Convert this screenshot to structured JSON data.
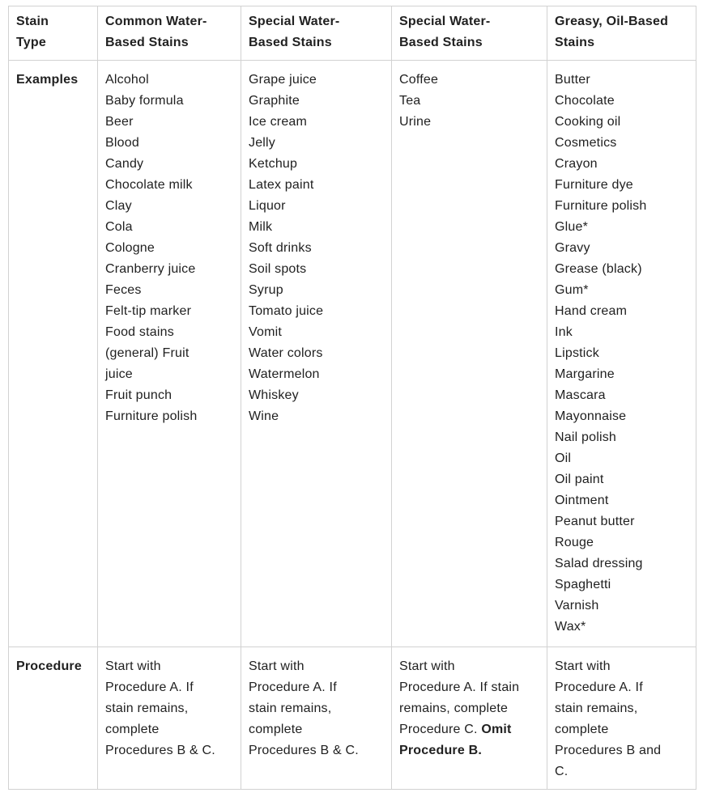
{
  "colors": {
    "background": "#ffffff",
    "text": "#212121",
    "border": "#d2d2d2"
  },
  "table": {
    "headers": [
      {
        "lines": [
          "Stain",
          "Type"
        ]
      },
      {
        "lines": [
          "Common Water-",
          "Based Stains"
        ]
      },
      {
        "lines": [
          "Special Water-",
          "Based Stains"
        ]
      },
      {
        "lines": [
          "Special Water-",
          "Based Stains"
        ]
      },
      {
        "lines": [
          "Greasy, Oil-Based",
          "Stains"
        ]
      }
    ],
    "examples_row": {
      "label": "Examples",
      "cells": [
        {
          "lines": [
            "Alcohol",
            "Baby formula",
            "Beer",
            "Blood",
            "Candy",
            "Chocolate milk",
            "Clay",
            "Cola",
            "Cologne",
            "Cranberry juice",
            "Feces",
            "Felt-tip marker",
            "Food stains",
            "(general) Fruit",
            "juice",
            "Fruit punch",
            "Furniture polish"
          ]
        },
        {
          "lines": [
            "Grape juice",
            "Graphite",
            "Ice cream",
            "Jelly",
            "Ketchup",
            "Latex paint",
            "Liquor",
            "Milk",
            "Soft drinks",
            "Soil spots",
            "Syrup",
            "Tomato juice",
            "Vomit",
            "Water colors",
            "Watermelon",
            "Whiskey",
            "Wine"
          ]
        },
        {
          "lines": [
            "Coffee",
            "Tea",
            "Urine"
          ]
        },
        {
          "lines": [
            "Butter",
            "Chocolate",
            "Cooking oil",
            "Cosmetics",
            "Crayon",
            "Furniture dye",
            "Furniture polish",
            "Glue*",
            "Gravy",
            "Grease (black)",
            "Gum*",
            "Hand cream",
            "Ink",
            "Lipstick",
            "Margarine",
            "Mascara",
            "Mayonnaise",
            "Nail polish",
            "Oil",
            "Oil paint",
            "Ointment",
            "Peanut butter",
            "Rouge",
            "Salad dressing",
            "Spaghetti",
            "Varnish",
            "Wax*"
          ]
        }
      ]
    },
    "procedure_row": {
      "label": "Procedure",
      "cells": [
        {
          "lines": [
            "Start with",
            "Procedure A. If",
            "stain remains,",
            "complete",
            "Procedures B & C."
          ]
        },
        {
          "lines": [
            "Start with",
            "Procedure A. If",
            "stain remains,",
            "complete",
            "Procedures B & C."
          ]
        },
        {
          "lines": [
            "Start with",
            "Procedure A. If stain",
            "remains, complete",
            [
              {
                "t": "Procedure C. "
              },
              {
                "t": "Omit",
                "b": true
              }
            ],
            [
              {
                "t": "Procedure B.",
                "b": true
              }
            ]
          ]
        },
        {
          "lines": [
            "Start with",
            "Procedure A. If",
            "stain remains,",
            "complete",
            "Procedures B and",
            "C."
          ]
        }
      ]
    }
  }
}
